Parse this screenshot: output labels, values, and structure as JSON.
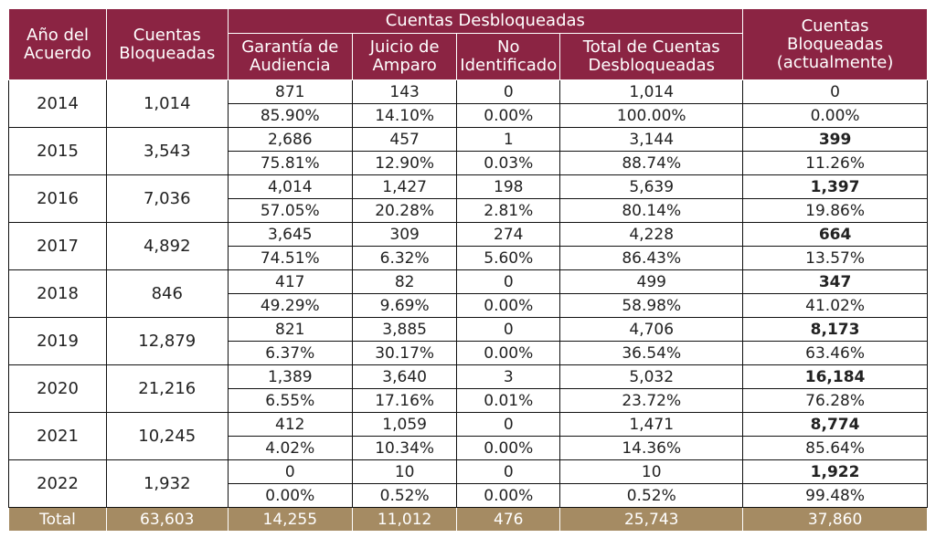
{
  "headers": {
    "year": [
      "Año del",
      "Acuerdo"
    ],
    "blocked": [
      "Cuentas",
      "Bloqueadas"
    ],
    "group": "Cuentas Desbloqueadas",
    "garantia": [
      "Garantía de",
      "Audiencia"
    ],
    "juicio": [
      "Juicio de",
      "Amparo"
    ],
    "noid": [
      "No",
      "Identificado"
    ],
    "total_unblocked": [
      "Total de Cuentas",
      "Desbloqueadas"
    ],
    "currently_blocked": [
      "Cuentas",
      "Bloqueadas",
      "(actualmente)"
    ]
  },
  "rows": [
    {
      "year": "2014",
      "blocked": "1,014",
      "counts": [
        "871",
        "143",
        "0",
        "1,014",
        "0"
      ],
      "pcts": [
        "85.90%",
        "14.10%",
        "0.00%",
        "100.00%",
        "0.00%"
      ]
    },
    {
      "year": "2015",
      "blocked": "3,543",
      "counts": [
        "2,686",
        "457",
        "1",
        "3,144",
        "399"
      ],
      "pcts": [
        "75.81%",
        "12.90%",
        "0.03%",
        "88.74%",
        "11.26%"
      ]
    },
    {
      "year": "2016",
      "blocked": "7,036",
      "counts": [
        "4,014",
        "1,427",
        "198",
        "5,639",
        "1,397"
      ],
      "pcts": [
        "57.05%",
        "20.28%",
        "2.81%",
        "80.14%",
        "19.86%"
      ]
    },
    {
      "year": "2017",
      "blocked": "4,892",
      "counts": [
        "3,645",
        "309",
        "274",
        "4,228",
        "664"
      ],
      "pcts": [
        "74.51%",
        "6.32%",
        "5.60%",
        "86.43%",
        "13.57%"
      ]
    },
    {
      "year": "2018",
      "blocked": "846",
      "counts": [
        "417",
        "82",
        "0",
        "499",
        "347"
      ],
      "pcts": [
        "49.29%",
        "9.69%",
        "0.00%",
        "58.98%",
        "41.02%"
      ]
    },
    {
      "year": "2019",
      "blocked": "12,879",
      "counts": [
        "821",
        "3,885",
        "0",
        "4,706",
        "8,173"
      ],
      "pcts": [
        "6.37%",
        "30.17%",
        "0.00%",
        "36.54%",
        "63.46%"
      ]
    },
    {
      "year": "2020",
      "blocked": "21,216",
      "counts": [
        "1,389",
        "3,640",
        "3",
        "5,032",
        "16,184"
      ],
      "pcts": [
        "6.55%",
        "17.16%",
        "0.01%",
        "23.72%",
        "76.28%"
      ]
    },
    {
      "year": "2021",
      "blocked": "10,245",
      "counts": [
        "412",
        "1,059",
        "0",
        "1,471",
        "8,774"
      ],
      "pcts": [
        "4.02%",
        "10.34%",
        "0.00%",
        "14.36%",
        "85.64%"
      ]
    },
    {
      "year": "2022",
      "blocked": "1,932",
      "counts": [
        "0",
        "10",
        "0",
        "10",
        "1,922"
      ],
      "pcts": [
        "0.00%",
        "0.52%",
        "0.00%",
        "0.52%",
        "99.48%"
      ]
    }
  ],
  "total": {
    "label": "Total",
    "values": [
      "63,603",
      "14,255",
      "11,012",
      "476",
      "25,743",
      "37,860"
    ]
  },
  "colors": {
    "header_bg": "#8b2443",
    "total_bg": "#a58b63"
  }
}
